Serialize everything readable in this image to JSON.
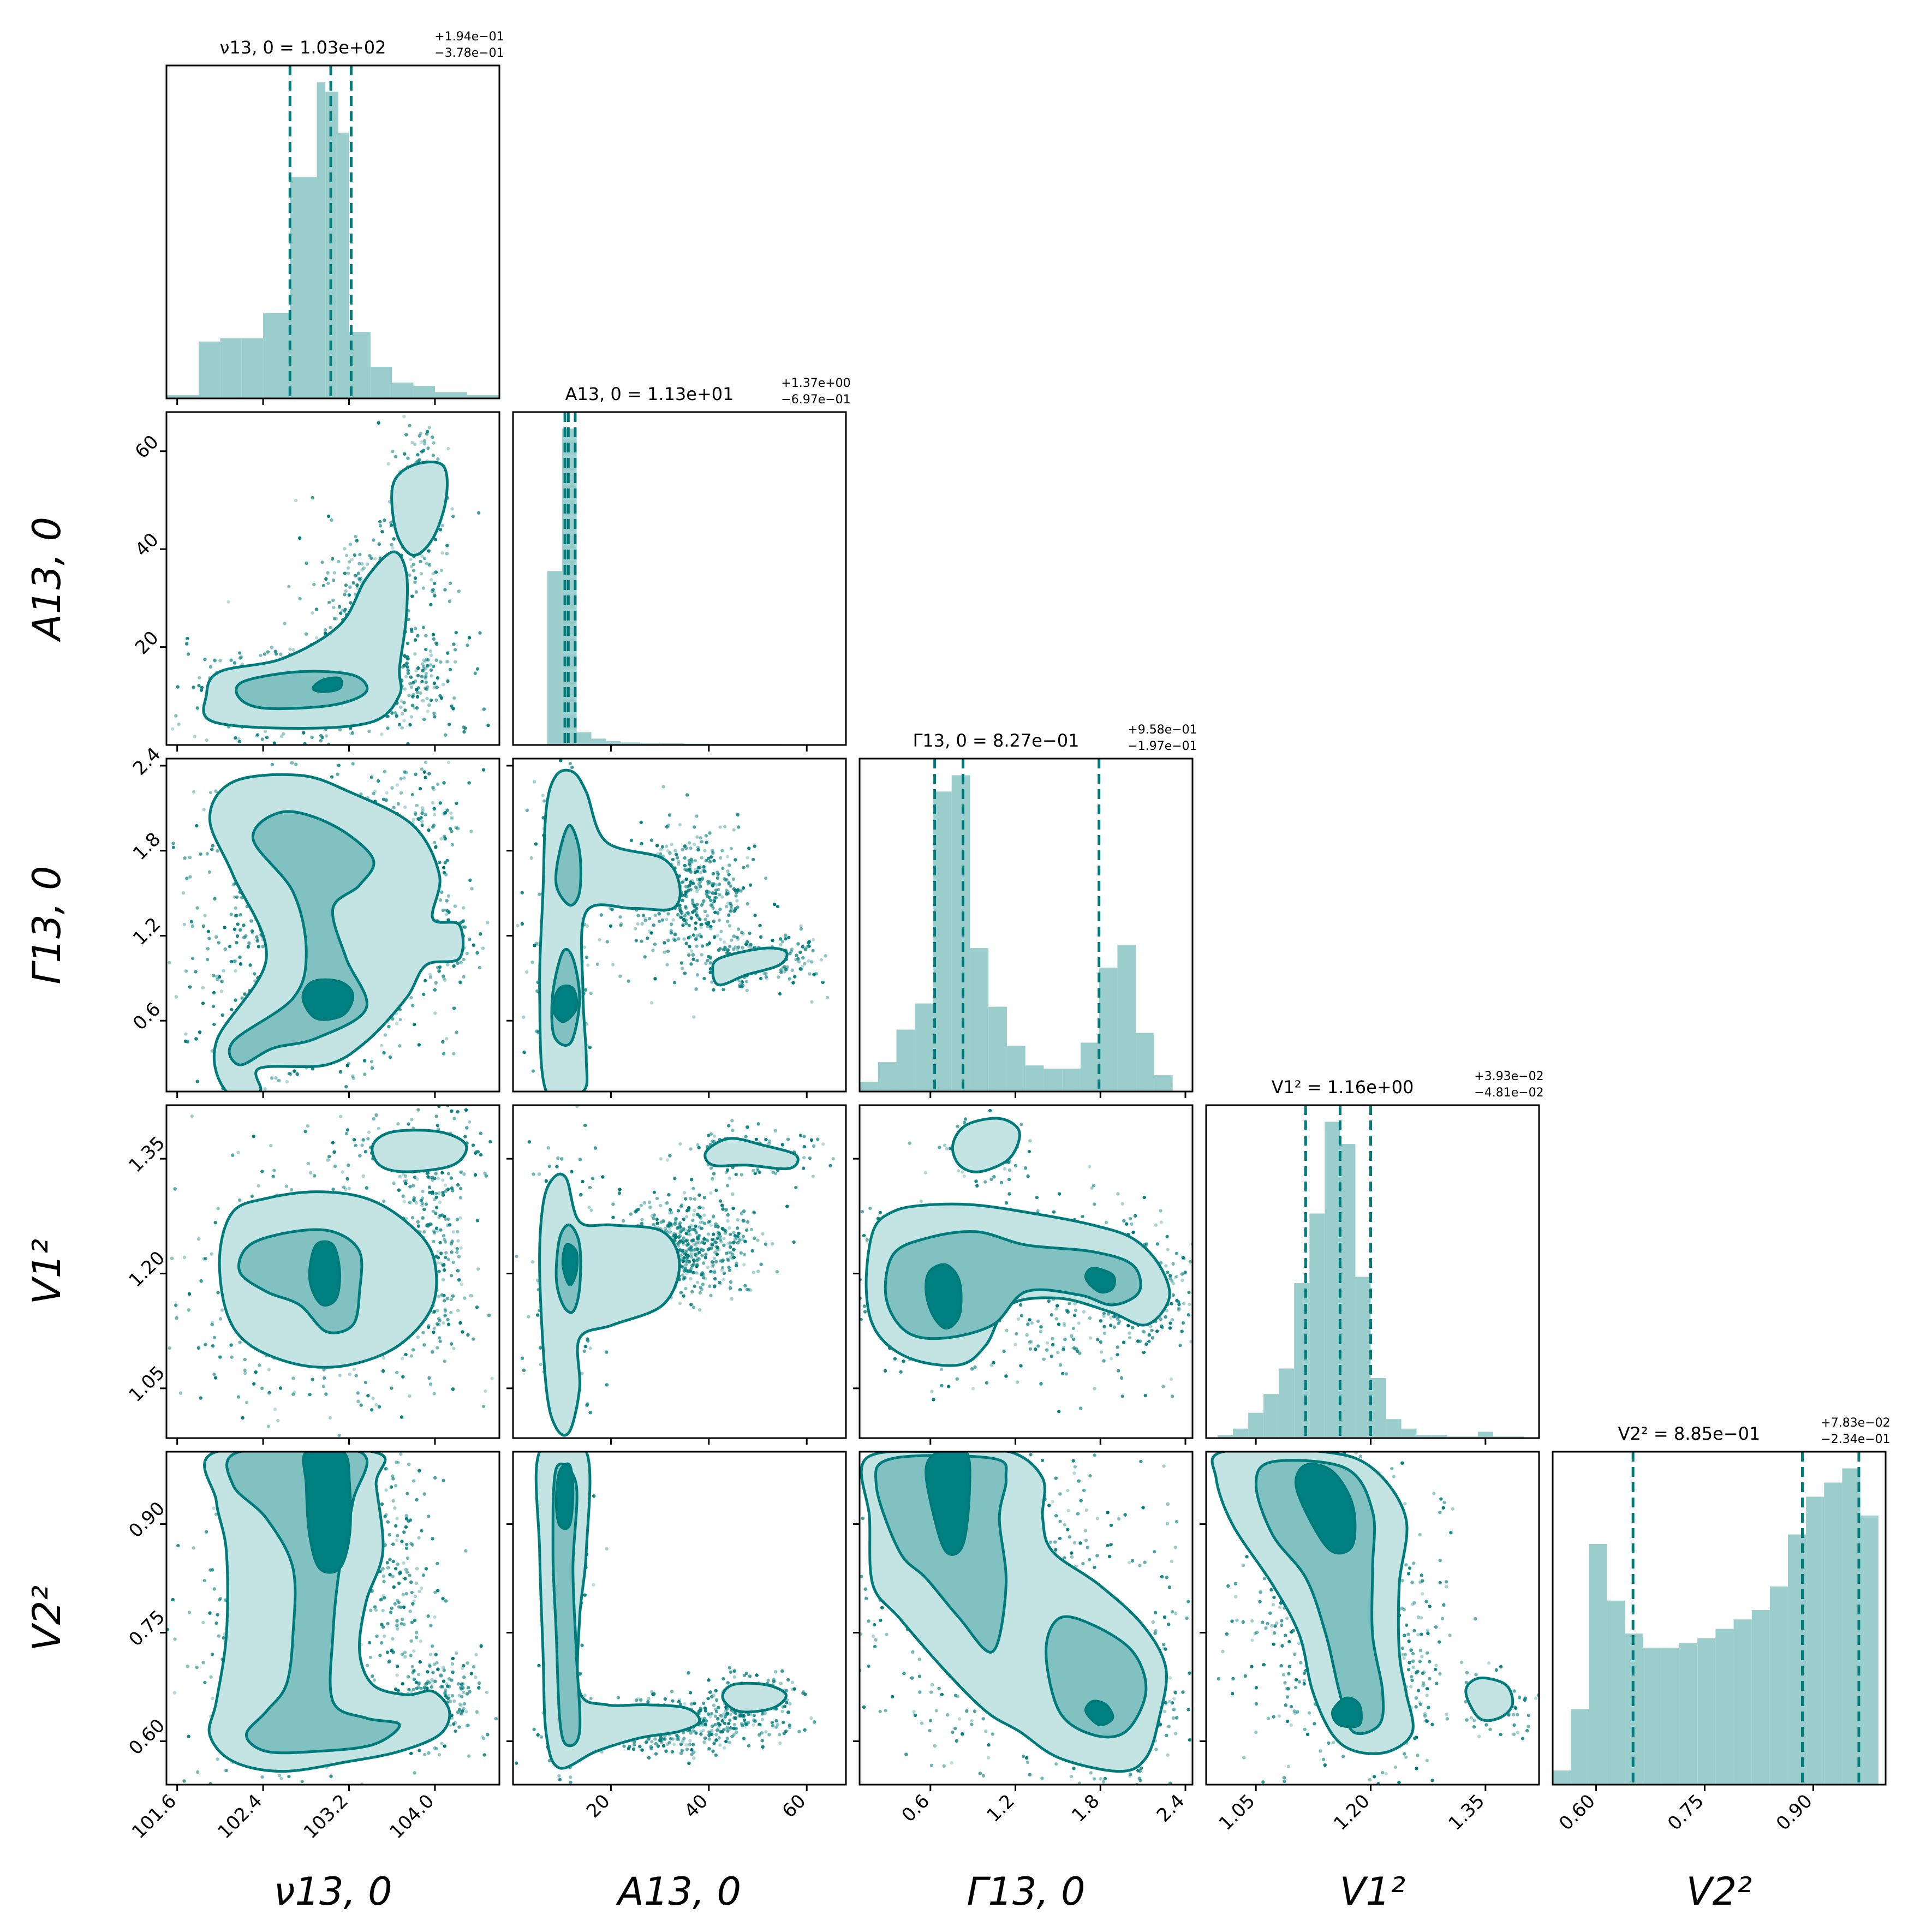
{
  "colors": {
    "accent": "#007b7b",
    "hist_fill": "#9ccdcd",
    "contour_outer": "#c4e3e3",
    "contour_mid": "#82c1c1",
    "contour_inner": "#008080"
  },
  "chart_data": {
    "type": "corner",
    "parameters": [
      {
        "label": "ν13, 0",
        "title": {
          "main": "ν13, 0 = 1.03e+02",
          "upper": "+1.94e−01",
          "lower": "−3.78e−01"
        },
        "range": [
          101.5,
          104.6
        ],
        "ticks": [
          101.6,
          102.4,
          103.2,
          104.0
        ],
        "tick_labels": [
          "101.6",
          "102.4",
          "103.2",
          "104.0"
        ],
        "quantiles": [
          102.65,
          103.03,
          103.22
        ],
        "hist": {
          "edges": [
            101.5,
            101.8,
            102.0,
            102.2,
            102.4,
            102.65,
            102.9,
            102.98,
            103.1,
            103.2,
            103.4,
            103.6,
            103.8,
            104.0,
            104.3,
            104.6
          ],
          "values": [
            0.01,
            0.18,
            0.19,
            0.19,
            0.27,
            0.7,
            1.0,
            0.97,
            0.84,
            0.21,
            0.1,
            0.05,
            0.04,
            0.02,
            0.01
          ]
        }
      },
      {
        "label": "A13, 0",
        "title": {
          "main": "A13, 0 = 1.13e+01",
          "upper": "+1.37e+00",
          "lower": "−6.97e−01"
        },
        "range": [
          0,
          68
        ],
        "ticks": [
          20,
          40,
          60
        ],
        "tick_labels": [
          "20",
          "40",
          "60"
        ],
        "quantiles": [
          10.6,
          11.3,
          12.7
        ],
        "hist": {
          "edges": [
            7,
            10,
            13,
            16,
            19,
            22,
            26,
            30,
            35,
            40,
            45,
            50,
            55,
            60,
            65
          ],
          "values": [
            0.55,
            1.0,
            0.04,
            0.02,
            0.012,
            0.008,
            0.006,
            0.005,
            0.004,
            0.003,
            0.003,
            0.003,
            0.002,
            0.002
          ]
        }
      },
      {
        "label": "Γ13, 0",
        "title": {
          "main": "Γ13, 0 = 8.27e−01",
          "upper": "+9.58e−01",
          "lower": "−1.97e−01"
        },
        "range": [
          0.1,
          2.45
        ],
        "ticks": [
          0.6,
          1.2,
          1.8,
          2.4
        ],
        "tick_labels": [
          "0.6",
          "1.2",
          "1.8",
          "2.4"
        ],
        "quantiles": [
          0.63,
          0.83,
          1.79
        ],
        "hist": {
          "edges": [
            0.1,
            0.23,
            0.36,
            0.49,
            0.62,
            0.75,
            0.88,
            1.01,
            1.14,
            1.27,
            1.4,
            1.53,
            1.66,
            1.79,
            1.92,
            2.05,
            2.18,
            2.31
          ],
          "values": [
            0.03,
            0.09,
            0.19,
            0.27,
            0.92,
            0.97,
            0.44,
            0.26,
            0.14,
            0.08,
            0.07,
            0.07,
            0.15,
            0.38,
            0.45,
            0.18,
            0.05
          ]
        }
      },
      {
        "label": "V1²",
        "title": {
          "main": "V1² = 1.16e+00",
          "upper": "+3.93e−02",
          "lower": "−4.81e−02"
        },
        "range": [
          0.985,
          1.42
        ],
        "ticks": [
          1.05,
          1.2,
          1.35
        ],
        "tick_labels": [
          "1.05",
          "1.20",
          "1.35"
        ],
        "quantiles": [
          1.115,
          1.16,
          1.2
        ],
        "hist": {
          "edges": [
            1.0,
            1.02,
            1.04,
            1.06,
            1.08,
            1.1,
            1.12,
            1.14,
            1.16,
            1.18,
            1.2,
            1.22,
            1.24,
            1.26,
            1.28,
            1.3,
            1.32,
            1.34,
            1.36,
            1.38,
            1.4
          ],
          "values": [
            0.01,
            0.03,
            0.08,
            0.14,
            0.22,
            0.49,
            0.71,
            1.0,
            0.93,
            0.51,
            0.19,
            0.06,
            0.03,
            0.01,
            0.01,
            0.005,
            0.005,
            0.02,
            0.005,
            0.005
          ]
        }
      },
      {
        "label": "V2²",
        "title": {
          "main": "V2² = 8.85e−01",
          "upper": "+7.83e−02",
          "lower": "−2.34e−01"
        },
        "range": [
          0.54,
          1.0
        ],
        "ticks": [
          0.6,
          0.75,
          0.9
        ],
        "tick_labels": [
          "0.60",
          "0.75",
          "0.90"
        ],
        "quantiles": [
          0.651,
          0.885,
          0.963
        ],
        "hist": {
          "edges": [
            0.54,
            0.565,
            0.59,
            0.615,
            0.64,
            0.665,
            0.69,
            0.715,
            0.74,
            0.765,
            0.79,
            0.815,
            0.84,
            0.865,
            0.89,
            0.915,
            0.94,
            0.965,
            0.99
          ],
          "values": [
            0.03,
            0.16,
            0.51,
            0.39,
            0.32,
            0.29,
            0.29,
            0.3,
            0.31,
            0.33,
            0.35,
            0.37,
            0.42,
            0.53,
            0.61,
            0.64,
            0.67,
            0.57
          ]
        }
      }
    ]
  }
}
